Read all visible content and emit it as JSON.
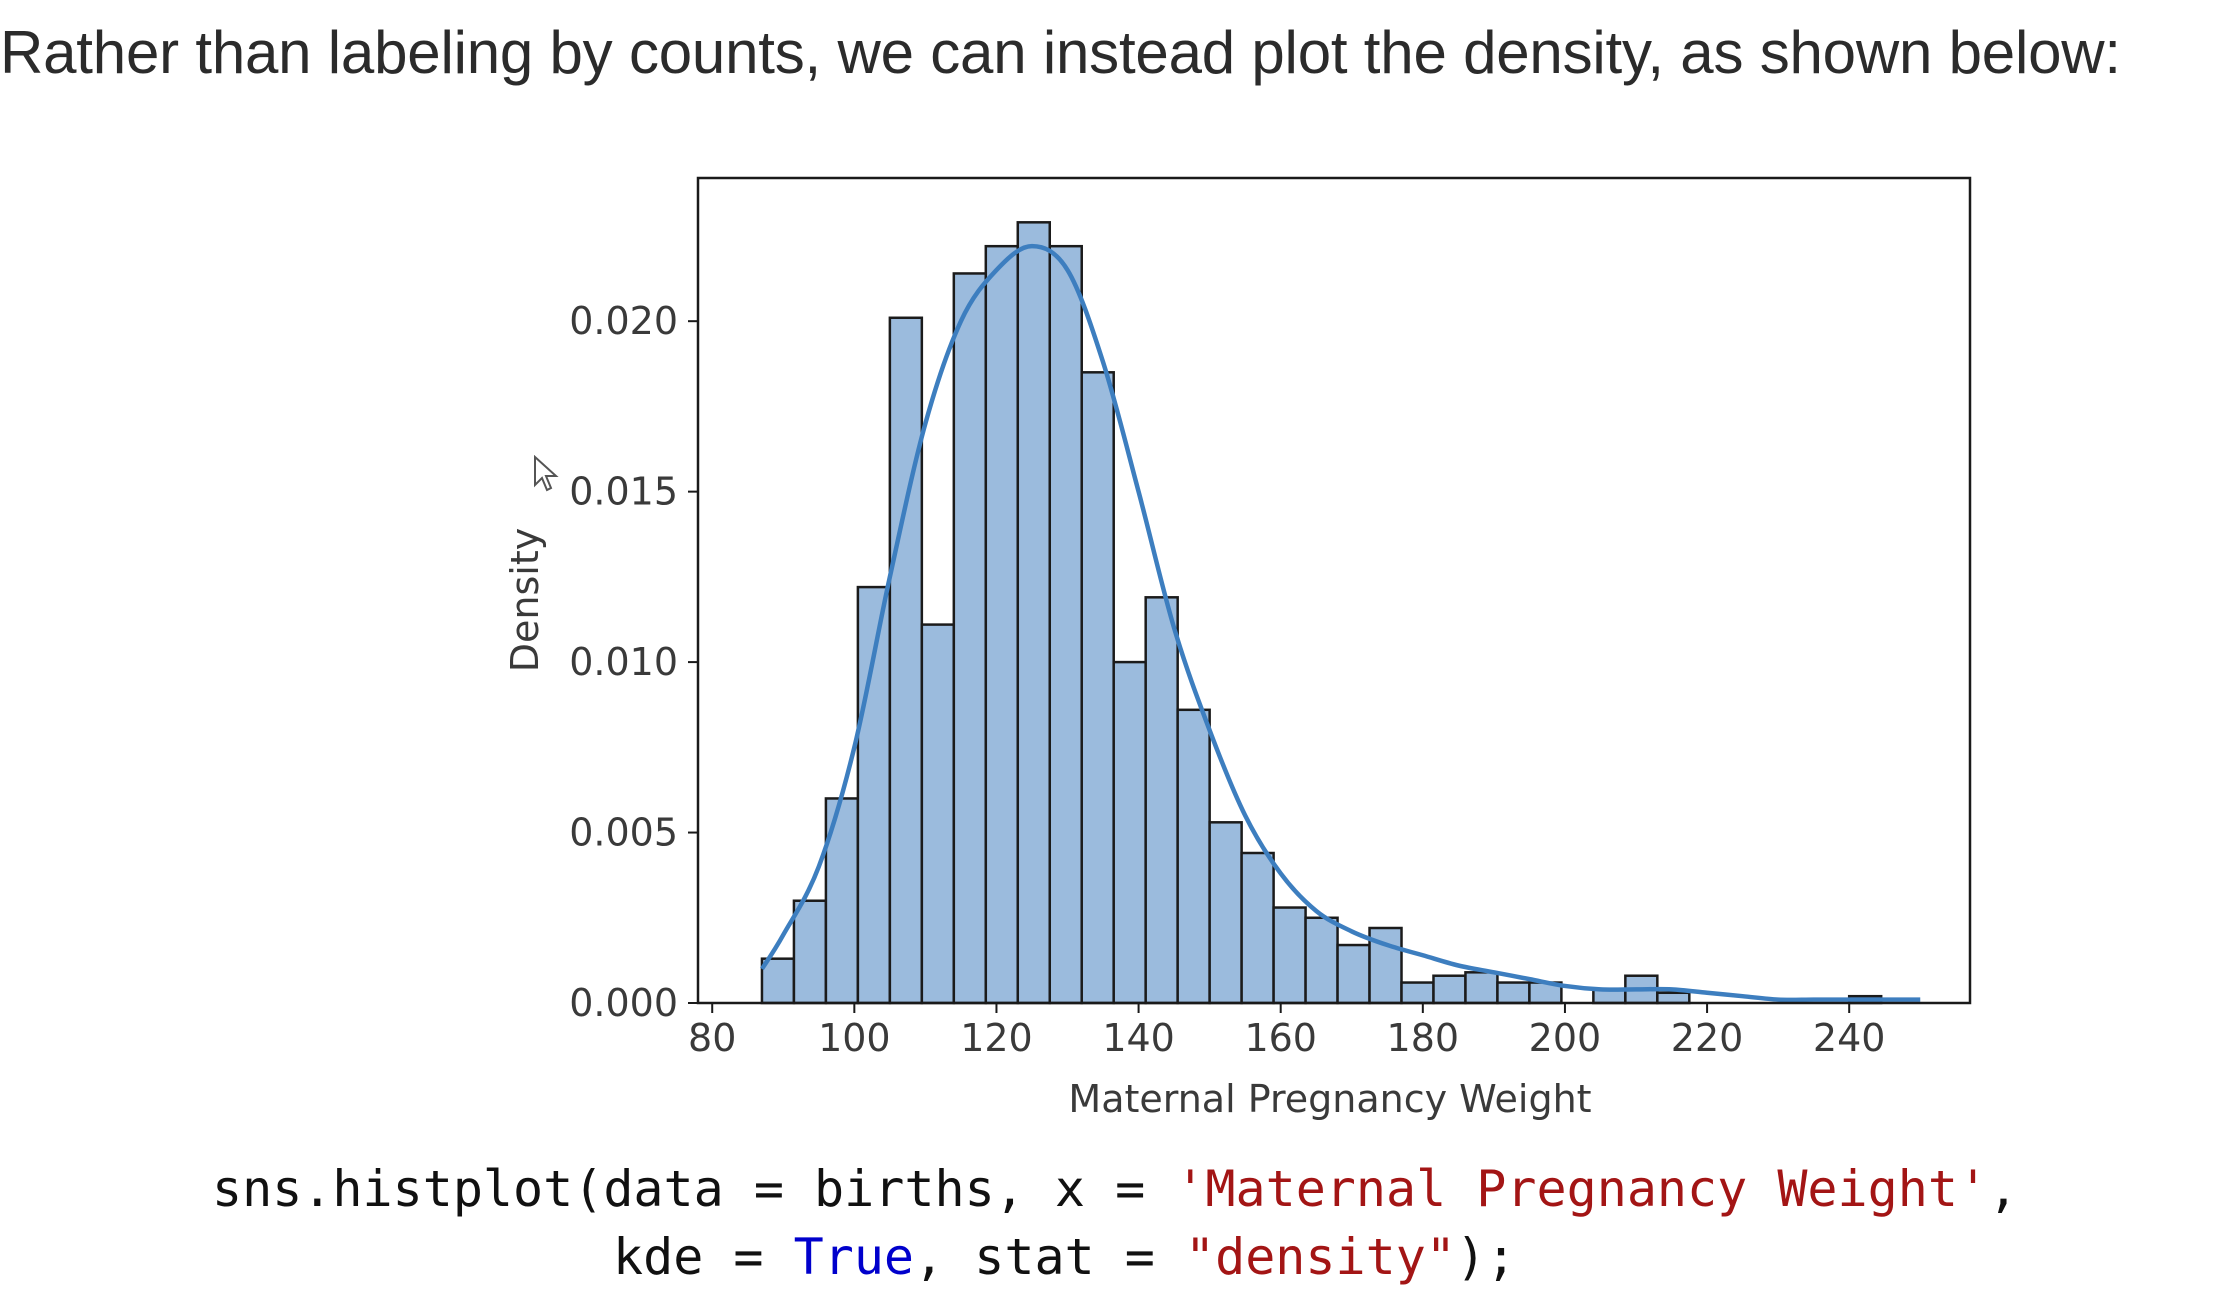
{
  "intro_text": "Rather than labeling by counts, we can instead plot the density, as shown below:",
  "chart_data": {
    "type": "bar",
    "xlabel": "Maternal Pregnancy Weight",
    "ylabel": "Density",
    "xlim": [
      78,
      257
    ],
    "ylim": [
      0,
      0.0242
    ],
    "xticks": [
      80,
      100,
      120,
      140,
      160,
      180,
      200,
      220,
      240
    ],
    "yticks": [
      0.0,
      0.005,
      0.01,
      0.015,
      0.02
    ],
    "ytick_labels": [
      "0.000",
      "0.005",
      "0.010",
      "0.015",
      "0.020"
    ],
    "bins": {
      "edges": [
        87,
        91.5,
        96,
        100.5,
        105,
        109.5,
        114,
        118.5,
        123,
        127.5,
        132,
        136.5,
        141,
        145.5,
        150,
        154.5,
        159,
        163.5,
        168,
        172.5,
        177,
        181.5,
        186,
        190.5,
        195,
        199.5,
        204,
        208.5,
        213,
        217.5,
        222,
        226.5,
        231,
        235.5,
        240,
        244.5,
        249
      ],
      "densities": [
        0.0013,
        0.003,
        0.006,
        0.0122,
        0.0201,
        0.0111,
        0.0214,
        0.0222,
        0.0229,
        0.0222,
        0.0185,
        0.01,
        0.0119,
        0.0086,
        0.0053,
        0.0044,
        0.0028,
        0.0025,
        0.0017,
        0.0022,
        0.0006,
        0.0008,
        0.0009,
        0.0006,
        0.0006,
        0,
        0.0004,
        0.0008,
        0.0003,
        0,
        0,
        0,
        0,
        0,
        0.0002,
        0
      ]
    },
    "kde": {
      "x": [
        87,
        90,
        95,
        100,
        105,
        110,
        115,
        120,
        125,
        130,
        135,
        140,
        145,
        150,
        155,
        160,
        165,
        170,
        175,
        180,
        185,
        190,
        195,
        200,
        205,
        210,
        215,
        220,
        225,
        230,
        235,
        240,
        245,
        250
      ],
      "y": [
        0.001,
        0.002,
        0.004,
        0.0075,
        0.0125,
        0.017,
        0.02,
        0.0215,
        0.0222,
        0.0215,
        0.0188,
        0.015,
        0.011,
        0.008,
        0.0055,
        0.0038,
        0.0027,
        0.0021,
        0.0017,
        0.0014,
        0.0011,
        0.0009,
        0.0007,
        0.0005,
        0.0004,
        0.0004,
        0.0004,
        0.0003,
        0.0002,
        0.0001,
        0.0001,
        0.0001,
        0.0001,
        0.0001
      ]
    },
    "bar_fill": "#9bbbdd",
    "bar_edge": "#1b1b1b",
    "kde_color": "#3d7ebf"
  },
  "code": {
    "line1_prefix": "sns.histplot(data = births, x = ",
    "line1_string": "'Maternal Pregnancy Weight'",
    "line1_suffix": ",",
    "line2_prefix": "kde = ",
    "line2_keyword": "True",
    "line2_mid": ", stat = ",
    "line2_string": "\"density\"",
    "line2_suffix": ");"
  },
  "icons": {
    "cursor": "mouse-pointer-icon"
  }
}
